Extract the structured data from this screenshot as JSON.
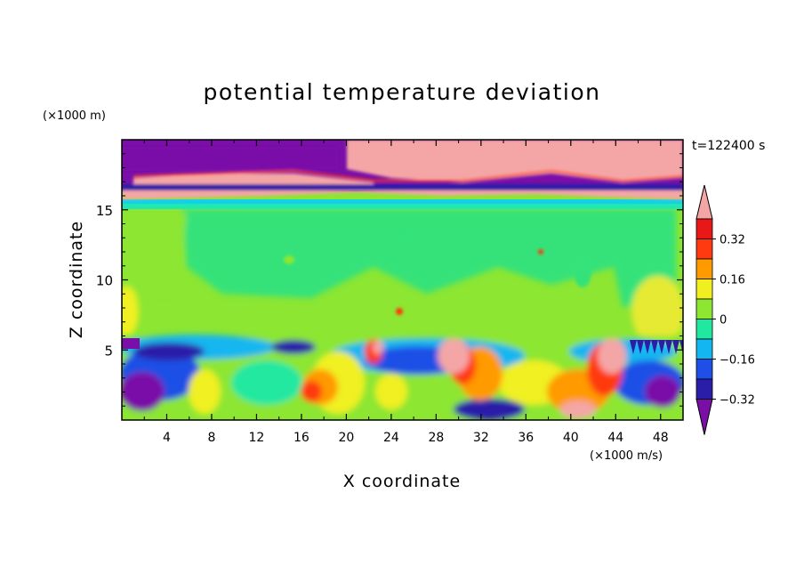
{
  "chart_data": {
    "type": "heatmap",
    "title": "potential temperature deviation",
    "xlabel": "X coordinate",
    "ylabel": "Z coordinate",
    "x_unit_label": "(×1000 m/s)",
    "y_unit_label": "(×1000 m)",
    "time_label": "t=122400 s",
    "xlim": [
      0,
      50
    ],
    "ylim": [
      0,
      20
    ],
    "x_ticks": [
      4,
      8,
      12,
      16,
      20,
      24,
      28,
      32,
      36,
      40,
      44,
      48
    ],
    "y_ticks": [
      5,
      10,
      15
    ],
    "colorbar": {
      "labels": [
        "0.32",
        "0.16",
        "0",
        "−0.16",
        "−0.32"
      ],
      "levels": [
        -0.4,
        -0.32,
        -0.24,
        -0.16,
        -0.08,
        0,
        0.08,
        0.16,
        0.24,
        0.32,
        0.4
      ],
      "colors": [
        "#7a0fa8",
        "#2a1ea8",
        "#1f4fe6",
        "#13b6f0",
        "#20e8a0",
        "#8ce632",
        "#f0f020",
        "#ff9a00",
        "#ff3a10",
        "#e81818",
        "#f4a6a6"
      ],
      "extend": "both"
    },
    "regions": [
      {
        "name": "upper layer",
        "z": [
          16.5,
          20
        ],
        "pattern": "bands of -0.4 (purple) and +0.4 (pink)"
      },
      {
        "name": "interface band",
        "z": [
          15,
          16.5
        ],
        "pattern": "cyan/teal near -0.08"
      },
      {
        "name": "mid troposphere",
        "z": [
          6,
          15
        ],
        "pattern": "mostly 0 to 0.08 (green), small positive anomalies"
      },
      {
        "name": "lower layer",
        "z": [
          0,
          6
        ],
        "pattern": "strong mixed anomalies from -0.4 to +0.4"
      }
    ]
  },
  "colors": {
    "background": "#ffffff",
    "axis": "#000000"
  }
}
